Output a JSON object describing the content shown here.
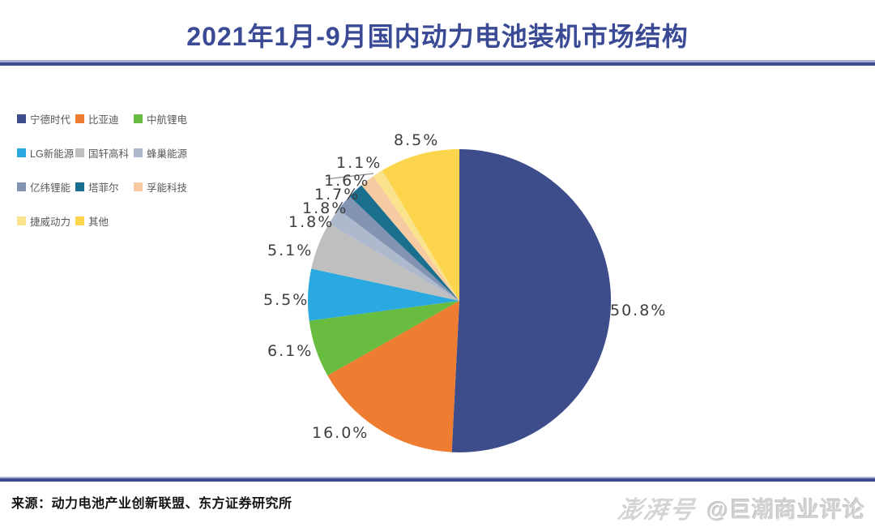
{
  "header": {
    "title": "2021年1月-9月国内动力电池装机市场结构"
  },
  "chart_data": {
    "type": "pie",
    "title": "2021年1月-9月国内动力电池装机市场结构",
    "unit": "%",
    "direction": "clockwise",
    "start_angle_deg": 0,
    "legend_position": "top-left",
    "total": 100.0,
    "slices": [
      {
        "name": "宁德时代",
        "value": 50.8,
        "label": "50.8%",
        "color": "#3d4c8a",
        "label_pos": [
          753,
          372
        ]
      },
      {
        "name": "比亚迪",
        "value": 16.0,
        "label": "16.0%",
        "color": "#ee7d31",
        "label_pos": [
          385,
          523
        ]
      },
      {
        "name": "中航锂电",
        "value": 6.1,
        "label": "6.1%",
        "color": "#68bc40",
        "label_pos": [
          330,
          422
        ]
      },
      {
        "name": "LG新能源",
        "value": 5.5,
        "label": "5.5%",
        "color": "#2aa9e0",
        "label_pos": [
          325,
          359
        ]
      },
      {
        "name": "国轩高科",
        "value": 5.1,
        "label": "5.1%",
        "color": "#bfbfbf",
        "label_pos": [
          330,
          298
        ]
      },
      {
        "name": "蜂巢能源",
        "value": 1.8,
        "label": "1.8%",
        "color": "#aeb9cd",
        "label_pos": [
          356,
          263
        ]
      },
      {
        "name": "亿纬锂能",
        "value": 1.8,
        "label": "1.8%",
        "color": "#8294b2",
        "label_pos": [
          373,
          246
        ]
      },
      {
        "name": "塔菲尔",
        "value": 1.7,
        "label": "1.7%",
        "color": "#1a6e8e",
        "label_pos": [
          388,
          229
        ]
      },
      {
        "name": "孚能科技",
        "value": 1.6,
        "label": "1.6%",
        "color": "#f6cba1",
        "label_pos": [
          400,
          212
        ]
      },
      {
        "name": "捷威动力",
        "value": 1.1,
        "label": "1.1%",
        "color": "#fae38c",
        "label_pos": [
          415,
          190
        ]
      },
      {
        "name": "其他",
        "value": 8.5,
        "label": "8.5%",
        "color": "#fdd54d",
        "label_pos": [
          486,
          162
        ]
      }
    ]
  },
  "footer": {
    "source": "来源：动力电池产业创新联盟、东方证券研究所",
    "watermark_logo": "澎湃号",
    "watermark_handle": "@巨潮商业评论"
  },
  "colors": {
    "background": "#ffffff",
    "title": "#3a4a94",
    "divider_dark": "#3e4c90",
    "divider_light": "#a9b2d6",
    "label_text": "#3e3e3e",
    "legend_text": "#595959",
    "watermark": "#d2d2d2"
  }
}
